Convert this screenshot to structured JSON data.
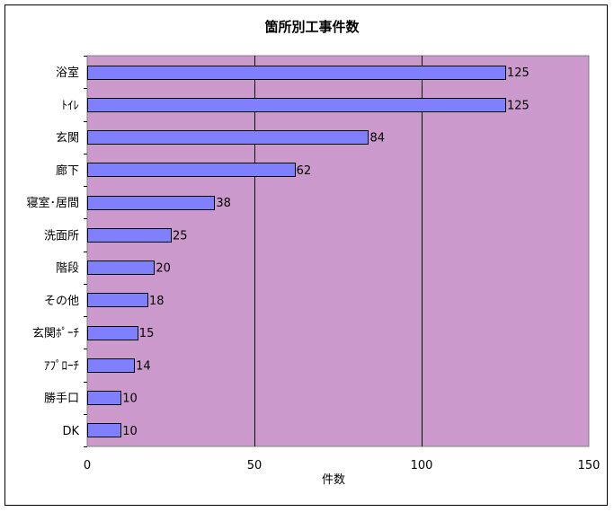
{
  "chart_data": {
    "type": "bar",
    "orientation": "horizontal",
    "title": "箇所別工事件数",
    "xlabel": "件数",
    "ylabel": "",
    "categories": [
      "浴室",
      "ﾄｲﾚ",
      "玄関",
      "廊下",
      "寝室･居間",
      "洗面所",
      "階段",
      "その他",
      "玄関ﾎﾟｰﾁ",
      "ｱﾌﾟﾛｰﾁ",
      "勝手口",
      "DK"
    ],
    "values": [
      125,
      125,
      84,
      62,
      38,
      25,
      20,
      18,
      15,
      14,
      10,
      10
    ],
    "xlim": [
      0,
      150
    ],
    "xticks": [
      0,
      50,
      100,
      150
    ],
    "grid": "vertical major gridlines",
    "legend": "none",
    "data_labels": true
  },
  "colors": {
    "plot_background": "#cc99cc",
    "bar_fill": "#8080ff",
    "bar_stroke": "#000000",
    "gridline": "#000000"
  }
}
